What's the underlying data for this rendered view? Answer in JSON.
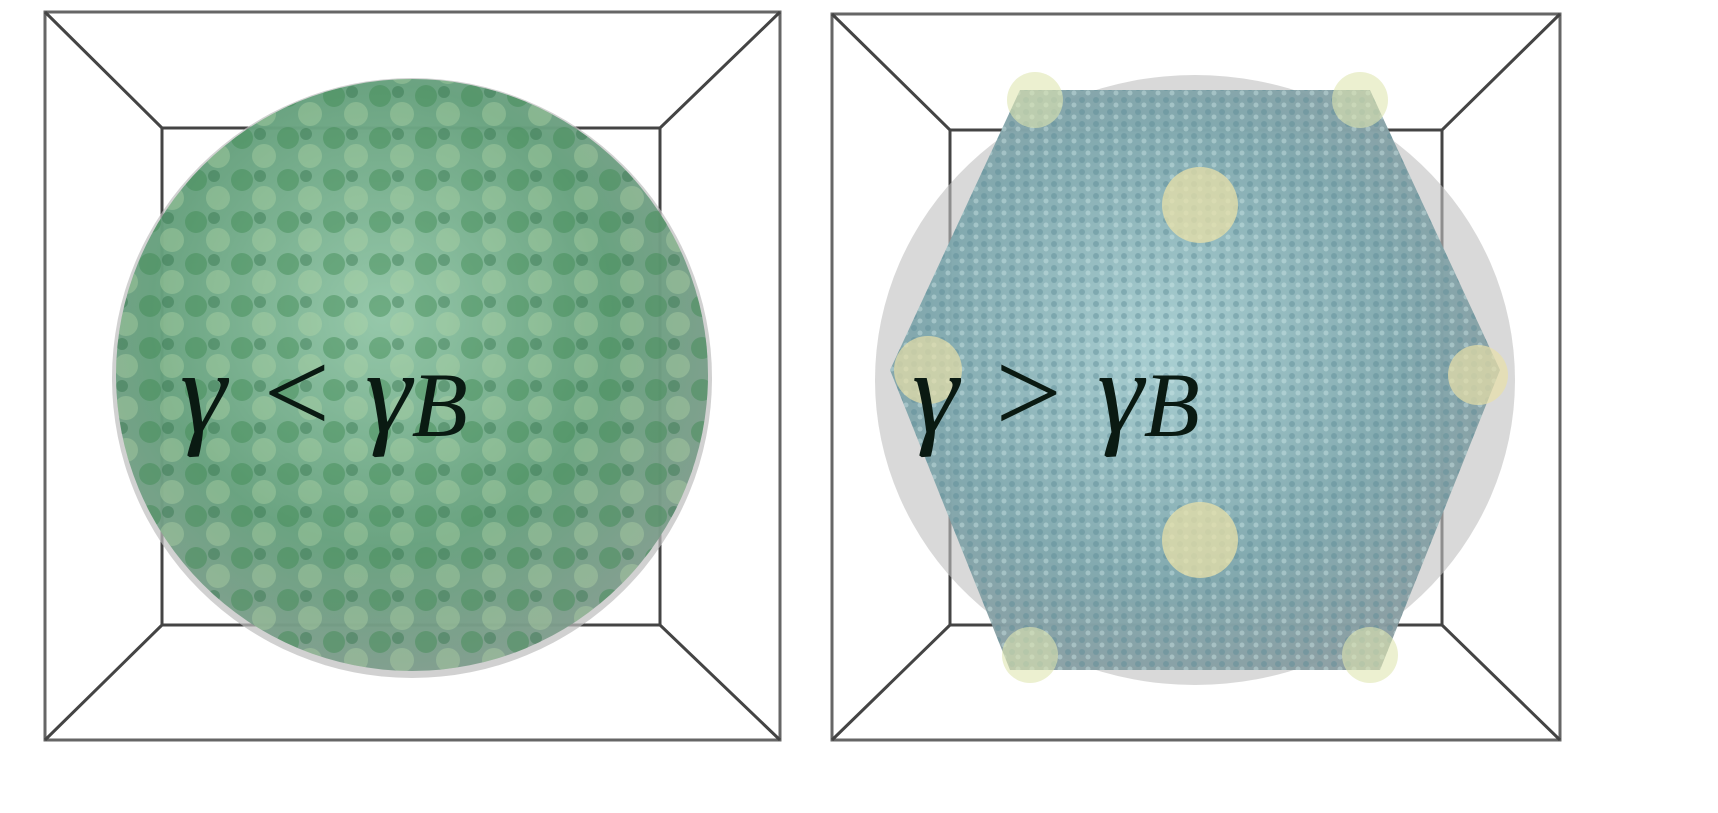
{
  "panels": [
    {
      "label": {
        "main": "γ < γ",
        "sub": "B"
      }
    },
    {
      "label": {
        "main": "γ > γ",
        "sub": "B"
      }
    }
  ]
}
